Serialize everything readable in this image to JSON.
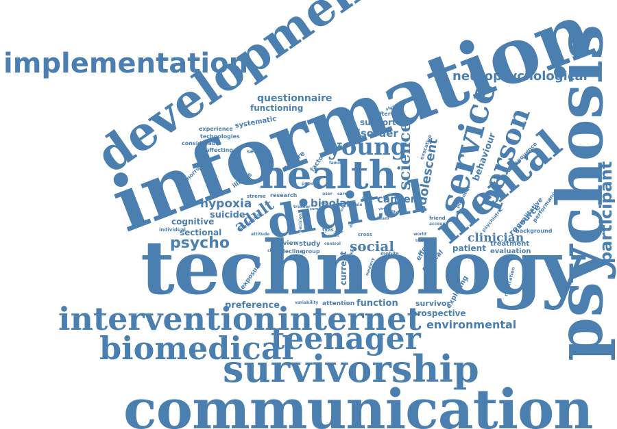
{
  "word_cloud": {
    "color": "#4a7fb0",
    "words": {
      "technology": "technology",
      "information": "information",
      "psychosis": "psychosis",
      "communication": "communication",
      "development": "development",
      "digital": "digital",
      "health": "health",
      "mental": "mental",
      "survivorship": "survivorship",
      "implementation": "implementation",
      "intervention": "intervention",
      "internet": "internet",
      "teenager": "teenager",
      "biomedical": "biomedical",
      "service": "service",
      "person": "person",
      "young": "young",
      "participant": "participant",
      "science": "science",
      "neuropsychological": "neuropsychological",
      "adolescent": "adolescent",
      "environmental": "environmental",
      "psycho": "psycho",
      "hypoxia": "hypoxia",
      "adult": "adult",
      "social": "social",
      "clinician": "clinician",
      "bipolar": "bipolar",
      "cancer": "cancer",
      "disorder": "disorder",
      "questionnaire": "questionnaire",
      "functioning": "functioning",
      "preference": "preference",
      "function": "function",
      "prospective": "prospective",
      "patient": "patient",
      "cognitive": "cognitive",
      "sectional": "sectional",
      "suicide": "suicide",
      "behaviour": "behaviour",
      "support": "support",
      "evaluation": "evaluation",
      "resource": "resource",
      "treatment": "treatment",
      "survivor": "survivor",
      "exploring": "exploring",
      "systematic": "systematic",
      "experience": "experience",
      "technologies": "technologies",
      "considerable": "considerable",
      "affecting": "affecting",
      "seeking": "seeking",
      "severe": "severe",
      "factor": "factor",
      "illness": "illness",
      "tomorrow": "tomorrow",
      "research": "research",
      "current": "current",
      "study": "study",
      "review": "review",
      "group": "group",
      "decline": "decline",
      "change": "change",
      "mobile": "mobile",
      "effect": "effect",
      "clinical": "clinical",
      "exposure": "exposure",
      "attention": "attention",
      "variability": "variability",
      "interview": "interview",
      "significant": "significant",
      "executive": "executive",
      "consequence": "consequence",
      "potential": "potential",
      "qualitative": "qualitative",
      "performance": "performance",
      "background": "background",
      "psychiatric": "psychiatric",
      "medication": "medication",
      "friend": "friend",
      "account": "account",
      "world": "world",
      "family": "family",
      "paper": "paper",
      "streme": "streme",
      "diagnosis": "diagnosis",
      "individual": "individual",
      "team": "team",
      "staff": "staff",
      "male": "male",
      "user": "user",
      "care": "care",
      "cross": "cross",
      "memory": "memory",
      "control": "control",
      "tyas": "tyas",
      "decision": "decision",
      "trekker": "trekker",
      "attitude": "attitude",
      "result": "result",
      "virtual": "virtual",
      "disease": "disease",
      "survey": "survey",
      "barrier": "barrier",
      "social_small": "social",
      "year": "year",
      "setting": "setting",
      "sleep": "sleep",
      "tool": "tool",
      "reality": "reality",
      "online": "online"
    }
  }
}
